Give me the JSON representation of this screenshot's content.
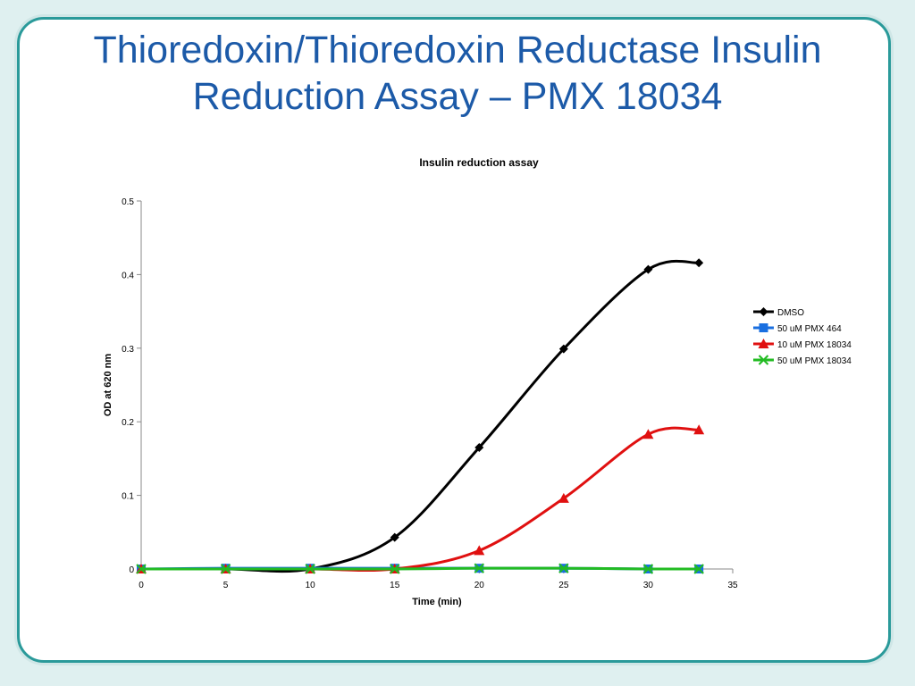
{
  "slide": {
    "title": "Thioredoxin/Thioredoxin Reductase Insulin Reduction Assay – PMX 18034"
  },
  "colors": {
    "title": "#1c5aa8",
    "border": "#2a9a9a"
  },
  "chart_data": {
    "type": "line",
    "title": "Insulin reduction assay",
    "xlabel": "Time (min)",
    "ylabel": "OD at 620 nm",
    "xlim": [
      0,
      35
    ],
    "ylim": [
      0,
      0.5
    ],
    "xticks": [
      0,
      5,
      10,
      15,
      20,
      25,
      30,
      35
    ],
    "yticks": [
      0,
      0.1,
      0.2,
      0.3,
      0.4,
      0.5
    ],
    "grid": false,
    "legend_position": "right",
    "series": [
      {
        "name": "DMSO",
        "color": "#000000",
        "marker": "diamond",
        "x": [
          0,
          5,
          10,
          15,
          20,
          25,
          30,
          33
        ],
        "y": [
          0,
          0,
          0,
          0.043,
          0.165,
          0.299,
          0.407,
          0.416
        ]
      },
      {
        "name": "50 uM PMX 464",
        "color": "#1a6fe0",
        "marker": "square",
        "x": [
          0,
          5,
          10,
          15,
          20,
          25,
          30,
          33
        ],
        "y": [
          0,
          0.001,
          0.001,
          0.001,
          0.001,
          0.001,
          0,
          0
        ]
      },
      {
        "name": "10 uM PMX 18034",
        "color": "#e01010",
        "marker": "triangle",
        "x": [
          0,
          5,
          10,
          15,
          20,
          25,
          30,
          33
        ],
        "y": [
          0,
          0,
          0,
          0,
          0.025,
          0.096,
          0.183,
          0.189
        ]
      },
      {
        "name": "50 uM PMX 18034",
        "color": "#22bb22",
        "marker": "x",
        "x": [
          0,
          5,
          10,
          15,
          20,
          25,
          30,
          33
        ],
        "y": [
          0,
          0,
          0,
          0,
          0.001,
          0.001,
          0,
          0
        ]
      }
    ]
  }
}
